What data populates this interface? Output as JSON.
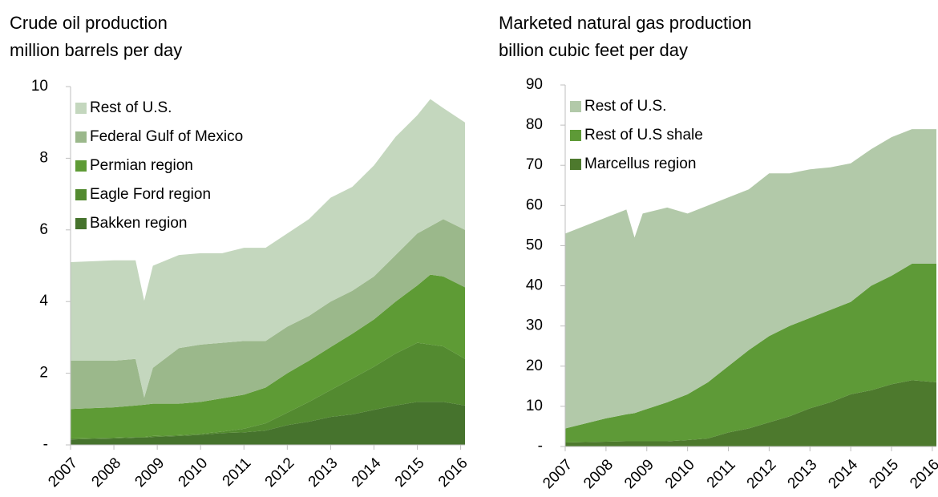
{
  "chart_data": [
    {
      "type": "area",
      "stacked": true,
      "title": "Crude oil production",
      "subtitle": "million barrels per day",
      "x": [
        2007,
        2008,
        2008.5,
        2008.7,
        2008.9,
        2009.5,
        2010,
        2010.5,
        2011,
        2011.5,
        2012,
        2012.5,
        2013,
        2013.5,
        2014,
        2014.5,
        2015,
        2015.3,
        2015.6,
        2016.1
      ],
      "series": [
        {
          "name": "Bakken region",
          "color": "#46732d",
          "values": [
            0.15,
            0.18,
            0.2,
            0.2,
            0.22,
            0.25,
            0.28,
            0.33,
            0.35,
            0.4,
            0.55,
            0.65,
            0.78,
            0.85,
            0.98,
            1.1,
            1.2,
            1.2,
            1.2,
            1.1
          ]
        },
        {
          "name": "Eagle Ford region",
          "color": "#538a30",
          "values": [
            0.03,
            0.02,
            0.02,
            0.02,
            0.03,
            0.02,
            0.03,
            0.04,
            0.1,
            0.2,
            0.35,
            0.55,
            0.75,
            1.0,
            1.2,
            1.45,
            1.65,
            1.6,
            1.55,
            1.3
          ]
        },
        {
          "name": "Permian region",
          "color": "#5e9b35",
          "values": [
            0.82,
            0.85,
            0.88,
            0.9,
            0.9,
            0.88,
            0.89,
            0.93,
            0.95,
            1.0,
            1.1,
            1.15,
            1.2,
            1.25,
            1.32,
            1.45,
            1.6,
            1.95,
            1.95,
            2.0
          ]
        },
        {
          "name": "Federal Gulf of Mexico",
          "color": "#9bb88b",
          "values": [
            1.35,
            1.3,
            1.3,
            0.2,
            1.0,
            1.55,
            1.6,
            1.55,
            1.5,
            1.3,
            1.3,
            1.25,
            1.27,
            1.2,
            1.2,
            1.3,
            1.45,
            1.35,
            1.6,
            1.6
          ]
        },
        {
          "name": "Rest of U.S.",
          "color": "#c4d7be",
          "values": [
            2.75,
            2.8,
            2.75,
            2.7,
            2.85,
            2.6,
            2.55,
            2.5,
            2.6,
            2.6,
            2.6,
            2.7,
            2.9,
            2.9,
            3.1,
            3.3,
            3.3,
            3.55,
            3.1,
            3.0
          ]
        }
      ],
      "xlim": [
        2007,
        2016.1
      ],
      "xticks": [
        2007,
        2008,
        2009,
        2010,
        2011,
        2012,
        2013,
        2014,
        2015,
        2016
      ],
      "ylim": [
        0,
        10
      ],
      "yticks": [
        {
          "value": 0,
          "label": "-"
        },
        2,
        4,
        6,
        8,
        10
      ],
      "legend": "upper left",
      "grid": false
    },
    {
      "type": "area",
      "stacked": true,
      "title": "Marketed natural gas production",
      "subtitle": "billion cubic feet per day",
      "x": [
        2007,
        2008,
        2008.5,
        2008.7,
        2008.9,
        2009.5,
        2010,
        2010.5,
        2011,
        2011.5,
        2012,
        2012.5,
        2013,
        2013.5,
        2014,
        2014.5,
        2015,
        2015.5,
        2016.1
      ],
      "series": [
        {
          "name": "Marcellus region",
          "color": "#4d792d",
          "values": [
            1,
            1.2,
            1.3,
            1.3,
            1.3,
            1.3,
            1.6,
            2,
            3.5,
            4.5,
            6,
            7.5,
            9.5,
            11,
            13,
            14,
            15.5,
            16.5,
            16
          ]
        },
        {
          "name": "Rest of U.S shale",
          "color": "#5e9a37",
          "values": [
            3.5,
            5.8,
            6.7,
            7,
            7.7,
            9.7,
            11.4,
            14,
            16.5,
            19.5,
            21.5,
            22.5,
            22.5,
            23,
            23,
            26,
            27,
            29,
            29.5
          ]
        },
        {
          "name": "Rest of U.S.",
          "color": "#b2c9a9",
          "values": [
            48.5,
            50,
            51,
            43.7,
            49,
            48.5,
            45,
            44,
            42,
            40,
            40.5,
            38,
            37,
            35.5,
            34.5,
            34,
            34.5,
            33.5,
            33.5
          ]
        }
      ],
      "xlim": [
        2007,
        2016.1
      ],
      "xticks": [
        2007,
        2008,
        2009,
        2010,
        2011,
        2012,
        2013,
        2014,
        2015,
        2016
      ],
      "ylim": [
        0,
        90
      ],
      "yticks": [
        {
          "value": 0,
          "label": "-"
        },
        10,
        20,
        30,
        40,
        50,
        60,
        70,
        80,
        90
      ],
      "legend": "upper left",
      "grid": false
    }
  ]
}
